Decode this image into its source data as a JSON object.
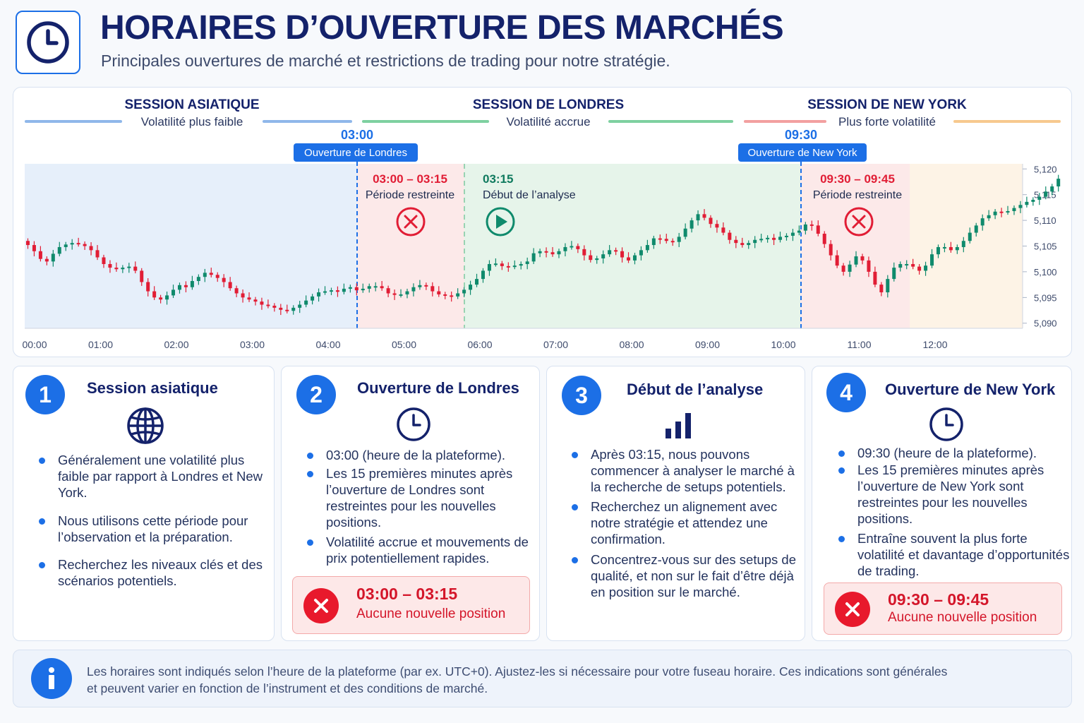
{
  "header": {
    "icon": "clock-icon",
    "title": "HORAIRES D’OUVERTURE DES MARCHÉS",
    "subtitle": "Principales ouvertures de marché et restrictions de trading pour notre stratégie."
  },
  "colors": {
    "accent": "#1c6fe6",
    "navy": "#14226b",
    "bullish": "#0f8a6c",
    "bearish": "#e11d35",
    "asian_zone": "#e6effa",
    "restricted_zone": "#fce9e9",
    "analysis_zone": "#e6f4ea",
    "ny_zone": "#fdf3e6"
  },
  "chart_data": {
    "type": "candlestick",
    "xlabel": "",
    "ylabel": "",
    "x_ticks": [
      "00:00",
      "01:00",
      "02:00",
      "03:00",
      "04:00",
      "05:00",
      "06:00",
      "07:00",
      "08:00",
      "09:00",
      "10:00",
      "11:00",
      "12:00"
    ],
    "y_ticks": [
      5090,
      5095,
      5100,
      5105,
      5110,
      5115,
      5120
    ],
    "ylim": [
      5089,
      5121
    ],
    "grid": false,
    "sessions": [
      {
        "name": "SESSION ASIATIQUE",
        "note": "Volatilité plus faible",
        "line_color": "#8fb7ea"
      },
      {
        "name": "SESSION DE LONDRES",
        "note": "Volatilité accrue",
        "line_color": "#7ed0a0"
      },
      {
        "name": "SESSION DE NEW YORK",
        "note": "Plus forte volatilité",
        "line_color": "#f2a0a0",
        "line_color_2": "#f7c98e"
      }
    ],
    "markers": [
      {
        "time": "03:00",
        "label": "Ouverture de Londres"
      },
      {
        "time": "09:30",
        "label": "Ouverture de New York"
      }
    ],
    "zones": [
      {
        "time": "03:00 – 03:15",
        "label": "Période restreinte",
        "kind": "restricted"
      },
      {
        "time": "03:15",
        "label": "Début de l’analyse",
        "kind": "analysis"
      },
      {
        "time": "09:30 – 09:45",
        "label": "Période restreinte",
        "kind": "restricted"
      }
    ],
    "series": [
      {
        "points_per_hour": 12,
        "close": [
          5105.2,
          5104.0,
          5102.5,
          5102.0,
          5103.5,
          5104.8,
          5105.3,
          5105.6,
          5105.4,
          5105.0,
          5104.2,
          5102.8,
          5101.5,
          5100.8,
          5100.5,
          5100.8,
          5101.0,
          5100.2,
          5098.0,
          5096.2,
          5095.0,
          5094.6,
          5095.4,
          5096.5,
          5097.4,
          5097.0,
          5098.2,
          5099.0,
          5099.8,
          5099.4,
          5098.8,
          5098.0,
          5096.8,
          5095.8,
          5095.0,
          5094.6,
          5094.2,
          5093.6,
          5093.4,
          5093.0,
          5092.6,
          5092.4,
          5093.0,
          5093.6,
          5094.4,
          5095.2,
          5096.0,
          5096.2,
          5096.4,
          5096.1,
          5096.7,
          5097.0,
          5096.4,
          5096.7,
          5097.2,
          5097.2,
          5096.8,
          5095.8,
          5095.5,
          5095.6,
          5096.2,
          5097.0,
          5097.4,
          5097.2,
          5096.2,
          5095.6,
          5095.4,
          5095.2,
          5095.8,
          5096.5,
          5097.5,
          5098.6,
          5100.2,
          5101.5,
          5101.6,
          5101.1,
          5101.0,
          5101.2,
          5101.5,
          5102.0,
          5103.6,
          5104.0,
          5103.8,
          5103.4,
          5104.0,
          5104.8,
          5105.0,
          5104.4,
          5103.2,
          5102.3,
          5102.6,
          5103.4,
          5104.2,
          5104.0,
          5102.8,
          5102.2,
          5103.2,
          5104.2,
          5105.2,
          5106.5,
          5106.4,
          5106.0,
          5105.8,
          5106.8,
          5108.4,
          5110.0,
          5111.2,
          5110.5,
          5109.3,
          5108.6,
          5107.6,
          5106.2,
          5105.6,
          5105.2,
          5105.6,
          5106.2,
          5106.4,
          5106.6,
          5106.2,
          5106.8,
          5107.0,
          5107.6,
          5108.0,
          5109.2,
          5109.0,
          5107.4,
          5105.4,
          5103.2,
          5101.2,
          5100.0,
          5101.4,
          5103.0,
          5102.2,
          5100.0,
          5097.5,
          5096.0,
          5098.6,
          5100.8,
          5101.5,
          5101.5,
          5101.0,
          5100.2,
          5101.2,
          5103.4,
          5104.8,
          5104.8,
          5104.2,
          5104.8,
          5106.0,
          5107.6,
          5109.0,
          5110.4,
          5111.0,
          5111.7,
          5111.6,
          5111.8,
          5112.4,
          5113.0,
          5113.6,
          5114.0,
          5114.6,
          5115.6,
          5116.6,
          5118.1
        ]
      }
    ]
  },
  "cards": [
    {
      "number": "1",
      "title": "Session asiatique",
      "icon": "globe-icon",
      "bullets": [
        "Généralement une volatilité plus faible par rapport à Londres et New York.",
        "Nous utilisons cette période pour l’observation et la préparation.",
        "Recherchez les niveaux clés et des scénarios potentiels."
      ]
    },
    {
      "number": "2",
      "title": "Ouverture de Londres",
      "icon": "clock-icon",
      "bullets": [
        "03:00 (heure de la plateforme).",
        "Les 15 premières minutes après l’ouverture de Londres sont restreintes pour les nouvelles positions.",
        "Volatilité accrue et mouvements de prix potentiellement rapides."
      ],
      "restriction": {
        "time": "03:00 – 03:15",
        "text": "Aucune nouvelle position"
      }
    },
    {
      "number": "3",
      "title": "Début de l’analyse",
      "icon": "bar-chart-icon",
      "bullets": [
        "Après 03:15, nous pouvons commencer à analyser le marché à la recherche de setups potentiels.",
        "Recherchez un alignement avec notre stratégie et attendez une confirmation.",
        "Concentrez-vous sur des setups de qualité, et non sur le fait d’être déjà en position sur le marché."
      ]
    },
    {
      "number": "4",
      "title": "Ouverture de New York",
      "icon": "clock-icon",
      "bullets": [
        "09:30 (heure de la plateforme).",
        "Les 15 premières minutes après l’ouverture de New York sont restreintes pour les nouvelles positions.",
        "Entraîne souvent la plus forte volatilité et davantage d’opportunités de trading."
      ],
      "restriction": {
        "time": "09:30 – 09:45",
        "text": "Aucune nouvelle position"
      }
    }
  ],
  "footer": {
    "icon": "info-icon",
    "line1": "Les horaires sont indiqués selon l’heure de la plateforme (par ex. UTC+0). Ajustez-les si nécessaire pour votre fuseau horaire. Ces indications sont générales",
    "line2": "et peuvent varier en fonction de l’instrument et des conditions de marché."
  }
}
